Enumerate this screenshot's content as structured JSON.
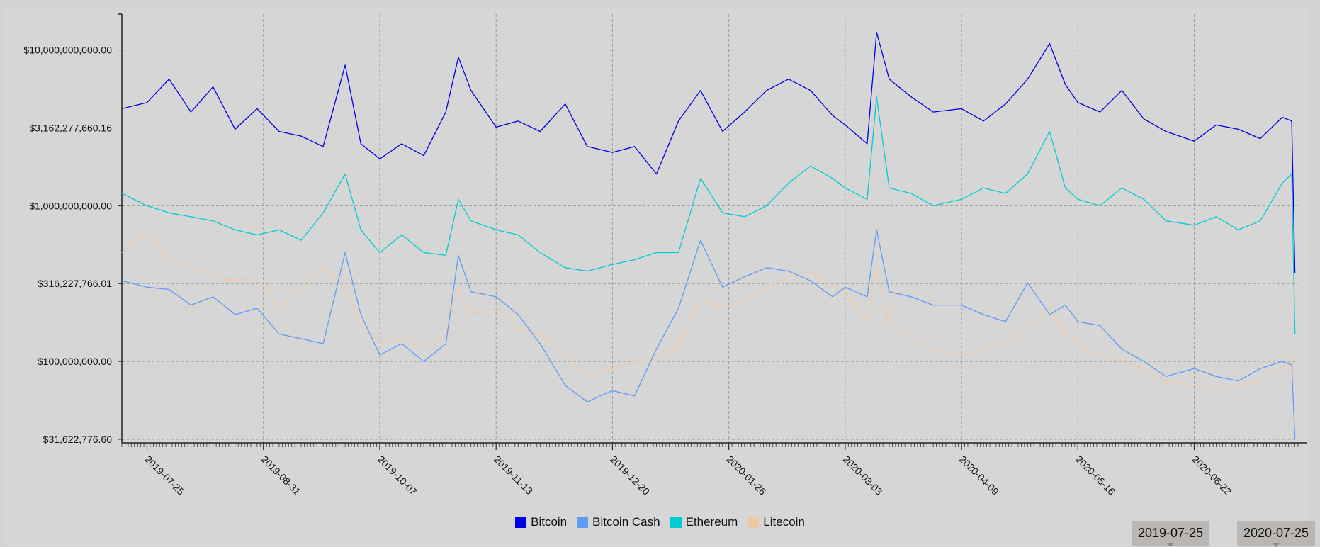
{
  "chart_data": {
    "type": "line",
    "title": "",
    "xlabel": "",
    "ylabel": "",
    "y_scale": "log",
    "y_range": [
      30000000,
      17000000000
    ],
    "x_range": [
      "2019-07-17",
      "2020-07-25"
    ],
    "x_ticks": [
      "2019-07-25",
      "2019-08-31",
      "2019-10-07",
      "2019-11-13",
      "2019-12-20",
      "2020-01-26",
      "2020-03-03",
      "2020-04-09",
      "2020-05-16",
      "2020-06-22"
    ],
    "y_ticks": [
      {
        "value": 31622776.6,
        "label": "$31,622,776.60"
      },
      {
        "value": 100000000,
        "label": "$100,000,000.00"
      },
      {
        "value": 316227766.01,
        "label": "$316,227,766.01"
      },
      {
        "value": 1000000000,
        "label": "$1,000,000,000.00"
      },
      {
        "value": 3162277660.16,
        "label": "$3,162,277,660.16"
      },
      {
        "value": 10000000000,
        "label": "$10,000,000,000.00"
      }
    ],
    "grid": true,
    "legend_position": "bottom",
    "series": [
      {
        "name": "Bitcoin",
        "color": "#0000e6",
        "points": [
          [
            "2019-07-17",
            4200000000
          ],
          [
            "2019-07-25",
            4600000000
          ],
          [
            "2019-08-01",
            6500000000
          ],
          [
            "2019-08-08",
            4000000000
          ],
          [
            "2019-08-15",
            5800000000
          ],
          [
            "2019-08-22",
            3100000000
          ],
          [
            "2019-08-29",
            4200000000
          ],
          [
            "2019-09-05",
            3000000000
          ],
          [
            "2019-09-12",
            2800000000
          ],
          [
            "2019-09-19",
            2400000000
          ],
          [
            "2019-09-26",
            8000000000
          ],
          [
            "2019-10-01",
            2500000000
          ],
          [
            "2019-10-07",
            2000000000
          ],
          [
            "2019-10-14",
            2500000000
          ],
          [
            "2019-10-21",
            2100000000
          ],
          [
            "2019-10-28",
            4000000000
          ],
          [
            "2019-11-01",
            9000000000
          ],
          [
            "2019-11-05",
            5500000000
          ],
          [
            "2019-11-13",
            3200000000
          ],
          [
            "2019-11-20",
            3500000000
          ],
          [
            "2019-11-27",
            3000000000
          ],
          [
            "2019-12-05",
            4500000000
          ],
          [
            "2019-12-12",
            2400000000
          ],
          [
            "2019-12-20",
            2200000000
          ],
          [
            "2019-12-27",
            2400000000
          ],
          [
            "2020-01-03",
            1600000000
          ],
          [
            "2020-01-10",
            3500000000
          ],
          [
            "2020-01-17",
            5500000000
          ],
          [
            "2020-01-24",
            3000000000
          ],
          [
            "2020-01-31",
            4000000000
          ],
          [
            "2020-02-07",
            5500000000
          ],
          [
            "2020-02-14",
            6500000000
          ],
          [
            "2020-02-21",
            5500000000
          ],
          [
            "2020-02-28",
            3800000000
          ],
          [
            "2020-03-03",
            3300000000
          ],
          [
            "2020-03-10",
            2500000000
          ],
          [
            "2020-03-13",
            13000000000
          ],
          [
            "2020-03-17",
            6500000000
          ],
          [
            "2020-03-24",
            5000000000
          ],
          [
            "2020-03-31",
            4000000000
          ],
          [
            "2020-04-09",
            4200000000
          ],
          [
            "2020-04-16",
            3500000000
          ],
          [
            "2020-04-23",
            4500000000
          ],
          [
            "2020-04-30",
            6500000000
          ],
          [
            "2020-05-07",
            11000000000
          ],
          [
            "2020-05-12",
            6000000000
          ],
          [
            "2020-05-16",
            4600000000
          ],
          [
            "2020-05-23",
            4000000000
          ],
          [
            "2020-05-30",
            5500000000
          ],
          [
            "2020-06-06",
            3600000000
          ],
          [
            "2020-06-13",
            3000000000
          ],
          [
            "2020-06-22",
            2600000000
          ],
          [
            "2020-06-29",
            3300000000
          ],
          [
            "2020-07-06",
            3100000000
          ],
          [
            "2020-07-13",
            2700000000
          ],
          [
            "2020-07-20",
            3700000000
          ],
          [
            "2020-07-23",
            3500000000
          ],
          [
            "2020-07-24",
            370000000
          ]
        ]
      },
      {
        "name": "Bitcoin Cash",
        "color": "#5f9af5",
        "points": [
          [
            "2019-07-17",
            330000000
          ],
          [
            "2019-07-25",
            300000000
          ],
          [
            "2019-08-01",
            290000000
          ],
          [
            "2019-08-08",
            230000000
          ],
          [
            "2019-08-15",
            260000000
          ],
          [
            "2019-08-22",
            200000000
          ],
          [
            "2019-08-29",
            220000000
          ],
          [
            "2019-09-05",
            150000000
          ],
          [
            "2019-09-12",
            140000000
          ],
          [
            "2019-09-19",
            130000000
          ],
          [
            "2019-09-26",
            500000000
          ],
          [
            "2019-10-01",
            200000000
          ],
          [
            "2019-10-07",
            110000000
          ],
          [
            "2019-10-14",
            130000000
          ],
          [
            "2019-10-21",
            100000000
          ],
          [
            "2019-10-28",
            130000000
          ],
          [
            "2019-11-01",
            480000000
          ],
          [
            "2019-11-05",
            280000000
          ],
          [
            "2019-11-13",
            260000000
          ],
          [
            "2019-11-20",
            200000000
          ],
          [
            "2019-11-27",
            130000000
          ],
          [
            "2019-12-05",
            70000000
          ],
          [
            "2019-12-12",
            55000000
          ],
          [
            "2019-12-20",
            65000000
          ],
          [
            "2019-12-27",
            60000000
          ],
          [
            "2020-01-03",
            120000000
          ],
          [
            "2020-01-10",
            220000000
          ],
          [
            "2020-01-17",
            600000000
          ],
          [
            "2020-01-24",
            300000000
          ],
          [
            "2020-01-31",
            350000000
          ],
          [
            "2020-02-07",
            400000000
          ],
          [
            "2020-02-14",
            380000000
          ],
          [
            "2020-02-21",
            330000000
          ],
          [
            "2020-02-28",
            260000000
          ],
          [
            "2020-03-03",
            300000000
          ],
          [
            "2020-03-10",
            260000000
          ],
          [
            "2020-03-13",
            700000000
          ],
          [
            "2020-03-17",
            280000000
          ],
          [
            "2020-03-24",
            260000000
          ],
          [
            "2020-03-31",
            230000000
          ],
          [
            "2020-04-09",
            230000000
          ],
          [
            "2020-04-16",
            200000000
          ],
          [
            "2020-04-23",
            180000000
          ],
          [
            "2020-04-30",
            320000000
          ],
          [
            "2020-05-07",
            200000000
          ],
          [
            "2020-05-12",
            230000000
          ],
          [
            "2020-05-16",
            180000000
          ],
          [
            "2020-05-23",
            170000000
          ],
          [
            "2020-05-30",
            120000000
          ],
          [
            "2020-06-06",
            100000000
          ],
          [
            "2020-06-13",
            80000000
          ],
          [
            "2020-06-22",
            90000000
          ],
          [
            "2020-06-29",
            80000000
          ],
          [
            "2020-07-06",
            75000000
          ],
          [
            "2020-07-13",
            90000000
          ],
          [
            "2020-07-20",
            100000000
          ],
          [
            "2020-07-23",
            95000000
          ],
          [
            "2020-07-24",
            32000000
          ]
        ]
      },
      {
        "name": "Ethereum",
        "color": "#00ccd0",
        "points": [
          [
            "2019-07-17",
            1200000000
          ],
          [
            "2019-07-25",
            1000000000
          ],
          [
            "2019-08-01",
            900000000
          ],
          [
            "2019-08-08",
            850000000
          ],
          [
            "2019-08-15",
            800000000
          ],
          [
            "2019-08-22",
            700000000
          ],
          [
            "2019-08-29",
            650000000
          ],
          [
            "2019-09-05",
            700000000
          ],
          [
            "2019-09-12",
            600000000
          ],
          [
            "2019-09-19",
            900000000
          ],
          [
            "2019-09-26",
            1600000000
          ],
          [
            "2019-10-01",
            700000000
          ],
          [
            "2019-10-07",
            500000000
          ],
          [
            "2019-10-14",
            650000000
          ],
          [
            "2019-10-21",
            500000000
          ],
          [
            "2019-10-28",
            480000000
          ],
          [
            "2019-11-01",
            1100000000
          ],
          [
            "2019-11-05",
            800000000
          ],
          [
            "2019-11-13",
            700000000
          ],
          [
            "2019-11-20",
            650000000
          ],
          [
            "2019-11-27",
            500000000
          ],
          [
            "2019-12-05",
            400000000
          ],
          [
            "2019-12-12",
            380000000
          ],
          [
            "2019-12-20",
            420000000
          ],
          [
            "2019-12-27",
            450000000
          ],
          [
            "2020-01-03",
            500000000
          ],
          [
            "2020-01-10",
            500000000
          ],
          [
            "2020-01-17",
            1500000000
          ],
          [
            "2020-01-24",
            900000000
          ],
          [
            "2020-01-31",
            850000000
          ],
          [
            "2020-02-07",
            1000000000
          ],
          [
            "2020-02-14",
            1400000000
          ],
          [
            "2020-02-21",
            1800000000
          ],
          [
            "2020-02-28",
            1500000000
          ],
          [
            "2020-03-03",
            1300000000
          ],
          [
            "2020-03-10",
            1100000000
          ],
          [
            "2020-03-13",
            5000000000
          ],
          [
            "2020-03-17",
            1300000000
          ],
          [
            "2020-03-24",
            1200000000
          ],
          [
            "2020-03-31",
            1000000000
          ],
          [
            "2020-04-09",
            1100000000
          ],
          [
            "2020-04-16",
            1300000000
          ],
          [
            "2020-04-23",
            1200000000
          ],
          [
            "2020-04-30",
            1600000000
          ],
          [
            "2020-05-07",
            3000000000
          ],
          [
            "2020-05-12",
            1300000000
          ],
          [
            "2020-05-16",
            1100000000
          ],
          [
            "2020-05-23",
            1000000000
          ],
          [
            "2020-05-30",
            1300000000
          ],
          [
            "2020-06-06",
            1100000000
          ],
          [
            "2020-06-13",
            800000000
          ],
          [
            "2020-06-22",
            750000000
          ],
          [
            "2020-06-29",
            850000000
          ],
          [
            "2020-07-06",
            700000000
          ],
          [
            "2020-07-13",
            800000000
          ],
          [
            "2020-07-20",
            1400000000
          ],
          [
            "2020-07-23",
            1600000000
          ],
          [
            "2020-07-24",
            150000000
          ]
        ]
      },
      {
        "name": "Litecoin",
        "color": "#f1c8a5",
        "points": [
          [
            "2019-07-17",
            500000000
          ],
          [
            "2019-07-25",
            700000000
          ],
          [
            "2019-08-01",
            450000000
          ],
          [
            "2019-08-08",
            400000000
          ],
          [
            "2019-08-15",
            350000000
          ],
          [
            "2019-08-22",
            330000000
          ],
          [
            "2019-08-29",
            350000000
          ],
          [
            "2019-09-05",
            220000000
          ],
          [
            "2019-09-12",
            300000000
          ],
          [
            "2019-09-19",
            400000000
          ],
          [
            "2019-09-26",
            300000000
          ],
          [
            "2019-10-01",
            170000000
          ],
          [
            "2019-10-07",
            130000000
          ],
          [
            "2019-10-14",
            140000000
          ],
          [
            "2019-10-21",
            120000000
          ],
          [
            "2019-10-28",
            150000000
          ],
          [
            "2019-11-01",
            300000000
          ],
          [
            "2019-11-05",
            200000000
          ],
          [
            "2019-11-13",
            220000000
          ],
          [
            "2019-11-20",
            160000000
          ],
          [
            "2019-11-27",
            150000000
          ],
          [
            "2019-12-05",
            110000000
          ],
          [
            "2019-12-12",
            80000000
          ],
          [
            "2019-12-20",
            90000000
          ],
          [
            "2019-12-27",
            100000000
          ],
          [
            "2020-01-03",
            100000000
          ],
          [
            "2020-01-10",
            130000000
          ],
          [
            "2020-01-17",
            250000000
          ],
          [
            "2020-01-24",
            220000000
          ],
          [
            "2020-01-31",
            250000000
          ],
          [
            "2020-02-07",
            300000000
          ],
          [
            "2020-02-14",
            350000000
          ],
          [
            "2020-02-21",
            380000000
          ],
          [
            "2020-02-28",
            300000000
          ],
          [
            "2020-03-03",
            280000000
          ],
          [
            "2020-03-10",
            180000000
          ],
          [
            "2020-03-13",
            400000000
          ],
          [
            "2020-03-17",
            170000000
          ],
          [
            "2020-03-24",
            140000000
          ],
          [
            "2020-03-31",
            120000000
          ],
          [
            "2020-04-09",
            110000000
          ],
          [
            "2020-04-16",
            120000000
          ],
          [
            "2020-04-23",
            130000000
          ],
          [
            "2020-04-30",
            160000000
          ],
          [
            "2020-05-07",
            220000000
          ],
          [
            "2020-05-12",
            150000000
          ],
          [
            "2020-05-16",
            130000000
          ],
          [
            "2020-05-23",
            110000000
          ],
          [
            "2020-05-30",
            100000000
          ],
          [
            "2020-06-06",
            90000000
          ],
          [
            "2020-06-13",
            75000000
          ],
          [
            "2020-06-22",
            70000000
          ],
          [
            "2020-06-29",
            65000000
          ],
          [
            "2020-07-06",
            70000000
          ],
          [
            "2020-07-13",
            75000000
          ],
          [
            "2020-07-20",
            90000000
          ],
          [
            "2020-07-23",
            110000000
          ],
          [
            "2020-07-24",
            70000000
          ]
        ]
      }
    ]
  },
  "range_selector": {
    "start_label": "2019-07-25",
    "end_label": "2020-07-25"
  }
}
